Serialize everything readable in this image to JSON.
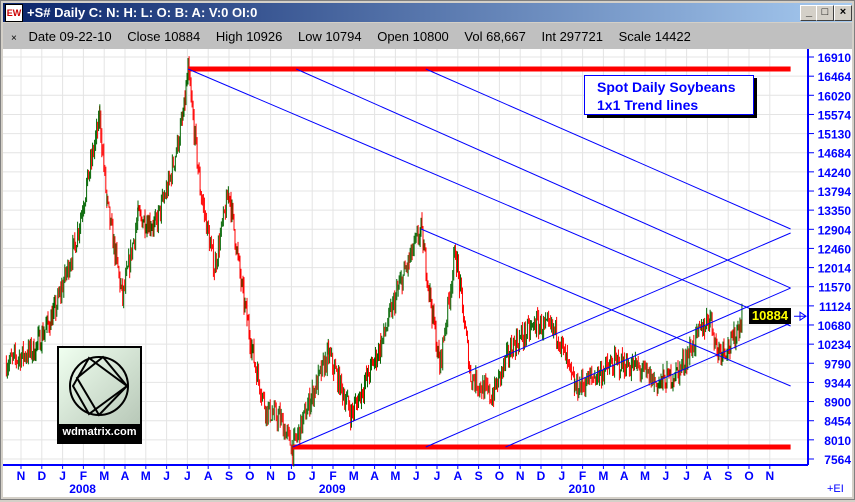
{
  "window": {
    "title": "+S# Daily C: N: H: L: O: B: A: V:0 OI:0",
    "app_icon": "EW",
    "buttons": [
      "_",
      "□",
      "×"
    ]
  },
  "info": {
    "date": "Date 09-22-10",
    "close": "Close 10884",
    "high": "High 10926",
    "low": "Low 10794",
    "open": "Open 10800",
    "vol": "Vol 68,667",
    "int": "Int 297721",
    "scale": "Scale 14422"
  },
  "annotation": {
    "line1": "Spot Daily Soybeans",
    "line2": "1x1 Trend lines"
  },
  "logo": {
    "text": "wdmatrix.com"
  },
  "footer": {
    "ei": "+EI"
  },
  "colors": {
    "up_bar": "#006400",
    "down_bar": "#ff0000",
    "trend": "#0000ff",
    "support_resistance": "#ff0000",
    "axis": "#0000ff"
  },
  "chart_data": {
    "type": "ohlc-bar",
    "title": "Spot Daily Soybeans",
    "last_price": "10884",
    "ylim": [
      7564,
      16910
    ],
    "y_ticks": [
      "16910",
      "16464",
      "16020",
      "15574",
      "15130",
      "14684",
      "14240",
      "13794",
      "13350",
      "12904",
      "12460",
      "12014",
      "11570",
      "11124",
      "10680",
      "10234",
      "9790",
      "9344",
      "8900",
      "8454",
      "8010",
      "7564"
    ],
    "x_ticks": [
      "N",
      "D",
      "J",
      "F",
      "M",
      "A",
      "M",
      "J",
      "J",
      "A",
      "S",
      "O",
      "N",
      "D",
      "J",
      "F",
      "M",
      "A",
      "M",
      "J",
      "J",
      "A",
      "S",
      "O",
      "N",
      "D",
      "J",
      "F",
      "M",
      "A",
      "M",
      "J",
      "J",
      "A",
      "S",
      "O",
      "N"
    ],
    "x_start": "2007-11",
    "year_labels": [
      {
        "label": "2008",
        "month": "2008-01"
      },
      {
        "label": "2009",
        "month": "2009-01"
      },
      {
        "label": "2010",
        "month": "2010-01"
      }
    ],
    "price_path": [
      [
        "2007-10-10",
        9790
      ],
      [
        "2007-11-20",
        10100
      ],
      [
        "2007-12-20",
        11000
      ],
      [
        "2008-01-20",
        12600
      ],
      [
        "2008-02-25",
        15500
      ],
      [
        "2008-03-05",
        13500
      ],
      [
        "2008-03-28",
        11300
      ],
      [
        "2008-04-20",
        13200
      ],
      [
        "2008-05-15",
        13000
      ],
      [
        "2008-06-05",
        14000
      ],
      [
        "2008-06-25",
        15500
      ],
      [
        "2008-07-02",
        16600
      ],
      [
        "2008-07-20",
        13800
      ],
      [
        "2008-08-10",
        12000
      ],
      [
        "2008-09-01",
        13800
      ],
      [
        "2008-09-20",
        11500
      ],
      [
        "2008-10-08",
        9800
      ],
      [
        "2008-10-25",
        8700
      ],
      [
        "2008-11-15",
        8500
      ],
      [
        "2008-12-03",
        7800
      ],
      [
        "2008-12-30",
        9000
      ],
      [
        "2009-01-25",
        10000
      ],
      [
        "2009-02-28",
        8600
      ],
      [
        "2009-04-10",
        10200
      ],
      [
        "2009-05-05",
        11500
      ],
      [
        "2009-06-08",
        12900
      ],
      [
        "2009-07-05",
        9700
      ],
      [
        "2009-07-28",
        12400
      ],
      [
        "2009-08-20",
        9500
      ],
      [
        "2009-09-20",
        9000
      ],
      [
        "2009-10-20",
        10200
      ],
      [
        "2009-11-25",
        10700
      ],
      [
        "2009-12-25",
        10500
      ],
      [
        "2010-01-20",
        9200
      ],
      [
        "2010-02-20",
        9500
      ],
      [
        "2010-03-20",
        9800
      ],
      [
        "2010-04-20",
        9700
      ],
      [
        "2010-05-20",
        9300
      ],
      [
        "2010-06-20",
        9600
      ],
      [
        "2010-07-20",
        10500
      ],
      [
        "2010-08-05",
        10900
      ],
      [
        "2010-08-15",
        10100
      ],
      [
        "2010-09-05",
        10200
      ],
      [
        "2010-09-22",
        10884
      ]
    ],
    "horizontal_lines": [
      {
        "from": "2008-07-02",
        "to": "2010-12-01",
        "price": 16631
      },
      {
        "from": "2008-12-03",
        "to": "2010-12-01",
        "price": 7843
      }
    ],
    "trend_lines": [
      {
        "from": [
          "2008-07-02",
          16631
        ],
        "to": [
          "2010-12-01",
          10656
        ]
      },
      {
        "from": [
          "2008-12-08",
          16631
        ],
        "to": [
          "2010-12-01",
          11539
        ]
      },
      {
        "from": [
          "2009-06-15",
          16631
        ],
        "to": [
          "2010-12-01",
          12911
        ]
      },
      {
        "from": [
          "2009-06-08",
          12911
        ],
        "to": [
          "2010-12-01",
          9261
        ]
      },
      {
        "from": [
          "2008-12-03",
          7843
        ],
        "to": [
          "2010-12-01",
          12818
        ]
      },
      {
        "from": [
          "2009-06-15",
          7843
        ],
        "to": [
          "2010-12-01",
          11539
        ]
      },
      {
        "from": [
          "2009-10-10",
          7843
        ],
        "to": [
          "2010-12-01",
          10726
        ]
      }
    ]
  }
}
